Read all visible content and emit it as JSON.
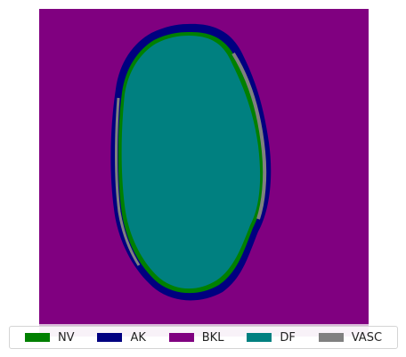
{
  "image": {
    "description_free": true,
    "palette": {
      "NV": "#008000",
      "AK": "#000080",
      "BKL": "#800080",
      "DF": "#008080",
      "VASC": "#808080"
    }
  },
  "legend": {
    "items": [
      {
        "label": "NV",
        "color": "#008000"
      },
      {
        "label": "AK",
        "color": "#000080"
      },
      {
        "label": "BKL",
        "color": "#800080"
      },
      {
        "label": "DF",
        "color": "#008080"
      },
      {
        "label": "VASC",
        "color": "#808080"
      }
    ]
  }
}
